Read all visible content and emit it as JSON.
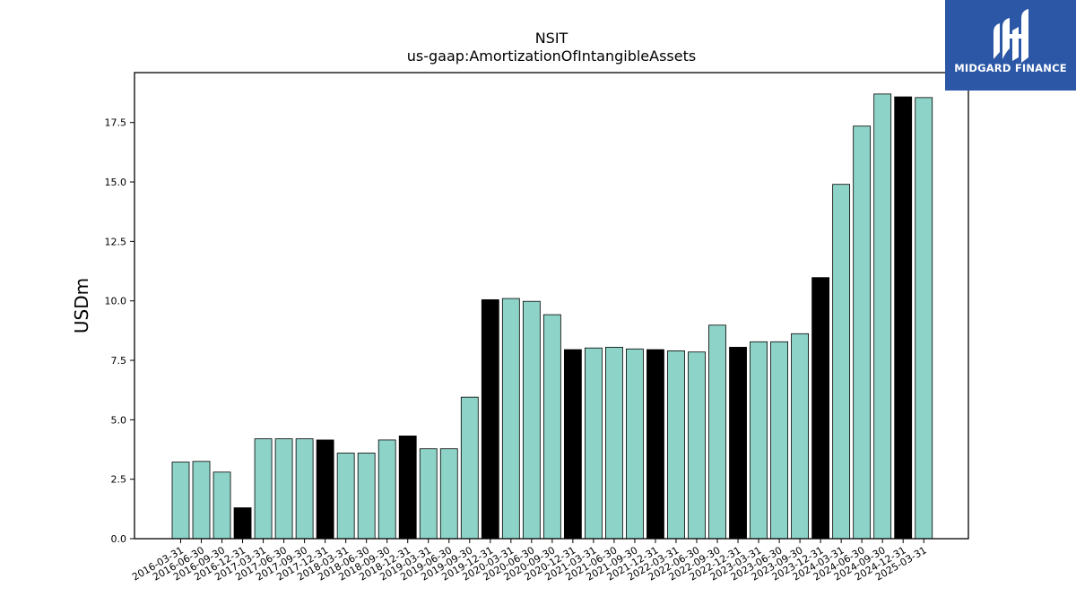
{
  "chart_data": {
    "type": "bar",
    "title": "NSIT",
    "subtitle": "us-gaap:AmortizationOfIntangibleAssets",
    "xlabel": "",
    "ylabel": "USDm",
    "ylim": [
      0,
      19.6
    ],
    "yticks": [
      "0.0",
      "2.5",
      "5.0",
      "7.5",
      "10.0",
      "12.5",
      "15.0",
      "17.5"
    ],
    "grid": false,
    "categories": [
      "2016-03-31",
      "2016-06-30",
      "2016-09-30",
      "2016-12-31",
      "2017-03-31",
      "2017-06-30",
      "2017-09-30",
      "2017-12-31",
      "2018-03-31",
      "2018-06-30",
      "2018-09-30",
      "2018-12-31",
      "2019-03-31",
      "2019-06-30",
      "2019-09-30",
      "2019-12-31",
      "2020-03-31",
      "2020-06-30",
      "2020-09-30",
      "2020-12-31",
      "2021-03-31",
      "2021-06-30",
      "2021-09-30",
      "2021-12-31",
      "2022-03-31",
      "2022-06-30",
      "2022-09-30",
      "2022-12-31",
      "2023-03-31",
      "2023-06-30",
      "2023-09-30",
      "2023-12-31",
      "2024-03-31",
      "2024-06-30",
      "2024-09-30",
      "2024-12-31",
      "2025-03-31"
    ],
    "values": [
      3.22,
      3.25,
      2.8,
      1.3,
      4.2,
      4.2,
      4.2,
      4.15,
      3.6,
      3.6,
      4.15,
      4.32,
      3.78,
      3.78,
      5.95,
      10.05,
      10.1,
      9.98,
      9.42,
      7.95,
      8.02,
      8.05,
      7.98,
      7.95,
      7.9,
      7.85,
      8.98,
      8.05,
      8.28,
      8.28,
      8.62,
      10.98,
      14.9,
      17.35,
      18.7,
      18.58,
      18.55
    ],
    "highlight": [
      false,
      false,
      false,
      true,
      false,
      false,
      false,
      true,
      false,
      false,
      false,
      true,
      false,
      false,
      false,
      true,
      false,
      false,
      false,
      true,
      false,
      false,
      false,
      true,
      false,
      false,
      false,
      true,
      false,
      false,
      false,
      true,
      false,
      false,
      false,
      true,
      false
    ],
    "colors": {
      "bar": "#8dd3c7",
      "highlight": "#000000",
      "edge": "#000000"
    }
  },
  "logo": {
    "text": "MIDGARD FINANCE",
    "background": "#2b57a6"
  }
}
